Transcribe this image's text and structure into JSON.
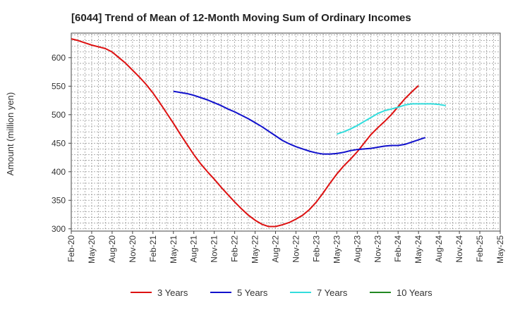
{
  "chart_data": {
    "type": "line",
    "title": "[6044]  Trend of Mean of 12-Month Moving Sum of Ordinary Incomes",
    "xlabel": "",
    "ylabel": "Amount (million yen)",
    "ylim": [
      296,
      643
    ],
    "yticks": [
      300,
      350,
      400,
      450,
      500,
      550,
      600
    ],
    "grid": true,
    "legend_position": "bottom",
    "x_tick_labels": [
      "Feb-20",
      "May-20",
      "Aug-20",
      "Nov-20",
      "Feb-21",
      "May-21",
      "Aug-21",
      "Nov-21",
      "Feb-22",
      "May-22",
      "Aug-22",
      "Nov-22",
      "Feb-23",
      "May-23",
      "Aug-23",
      "Nov-23",
      "Feb-24",
      "May-24",
      "Aug-24",
      "Nov-24",
      "Feb-25",
      "May-25"
    ],
    "series": [
      {
        "name": "3 Years",
        "color": "#dd1111",
        "start_month_index": 0,
        "values": [
          633,
          630,
          626,
          622,
          619,
          616,
          610,
          600,
          590,
          578,
          566,
          553,
          538,
          521,
          503,
          485,
          466,
          448,
          430,
          414,
          400,
          387,
          373,
          360,
          347,
          335,
          324,
          315,
          308,
          304,
          304,
          307,
          311,
          317,
          324,
          334,
          347,
          363,
          380,
          396,
          410,
          422,
          435,
          450,
          465,
          477,
          488,
          500,
          514,
          528,
          540,
          551
        ]
      },
      {
        "name": "5 Years",
        "color": "#1111cc",
        "start_month_index": 15,
        "values": [
          541,
          539,
          537,
          534,
          530,
          526,
          521,
          516,
          510,
          505,
          499,
          493,
          486,
          479,
          471,
          463,
          455,
          449,
          444,
          440,
          436,
          433,
          431,
          431,
          432,
          434,
          437,
          439,
          440,
          441,
          443,
          445,
          446,
          446,
          448,
          452,
          456,
          460
        ]
      },
      {
        "name": "7 Years",
        "color": "#33dddd",
        "start_month_index": 39,
        "values": [
          466,
          470,
          475,
          481,
          488,
          495,
          502,
          507,
          510,
          513,
          517,
          519,
          519,
          519,
          519,
          518,
          516
        ]
      },
      {
        "name": "10 Years",
        "color": "#228822",
        "start_month_index": 0,
        "values": []
      }
    ]
  }
}
